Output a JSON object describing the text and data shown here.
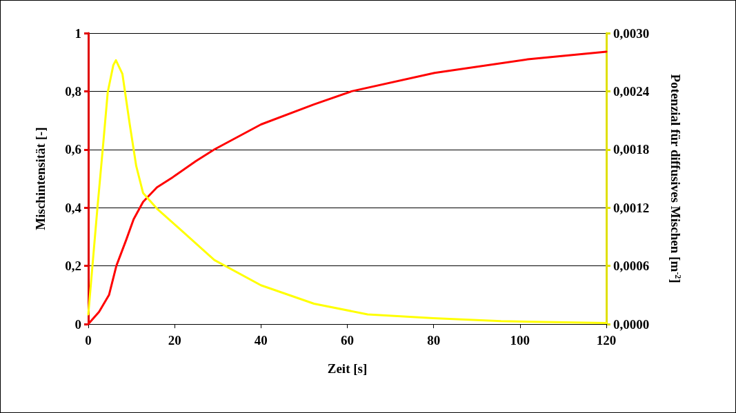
{
  "chart_data": {
    "type": "line",
    "xlabel": "Zeit [s]",
    "ylabel": "Mischintensität [-]",
    "y2label": "Potenzial für diffusives Mischen [m$^{-2}$]",
    "xlim": [
      0,
      120
    ],
    "xticks": [
      0,
      20,
      40,
      60,
      80,
      100,
      120
    ],
    "ylim": [
      0,
      1
    ],
    "yticks": [
      0,
      {
        "value": 0.2,
        "label": "0,2"
      },
      {
        "value": 0.4,
        "label": "0,4"
      },
      {
        "value": 0.6,
        "label": "0,6"
      },
      {
        "value": 0.8,
        "label": "0,8"
      },
      1
    ],
    "y2lim": [
      0,
      0.003
    ],
    "y2ticks": [
      {
        "value": 0,
        "label": "0,0000"
      },
      {
        "value": 0.0006,
        "label": "0,0006"
      },
      {
        "value": 0.0012,
        "label": "0,0012"
      },
      {
        "value": 0.0018,
        "label": "0,0018"
      },
      {
        "value": 0.0024,
        "label": "0,0024"
      },
      {
        "value": 0.003,
        "label": "0,0030"
      }
    ],
    "grid": "y",
    "marker": "none",
    "line_style": "solid",
    "series": [
      {
        "color": "#ff0000",
        "x": [
          0,
          2.5,
          4.8,
          6.5,
          8.8,
          10.5,
          12.7,
          15.9,
          19.6,
          24.9,
          29.2,
          40,
          52.3,
          61,
          80.2,
          101.8,
          120
        ],
        "values": [
          0,
          0.042,
          0.1,
          0.2,
          0.29,
          0.36,
          0.42,
          0.47,
          0.505,
          0.56,
          0.6,
          0.686,
          0.755,
          0.8,
          0.863,
          0.91,
          0.936
        ]
      },
      {
        "color": "#ffff00",
        "axis": "y2",
        "x": [
          0,
          2.1,
          3.4,
          4.5,
          5.8,
          6.4,
          7.9,
          9.6,
          11.1,
          12.7,
          15.9,
          21.2,
          29.2,
          40,
          52.3,
          64.7,
          80,
          95.6,
          120
        ],
        "values": [
          0.0001,
          0.00119,
          0.00183,
          0.00239,
          0.00267,
          0.00272,
          0.00258,
          0.00206,
          0.00163,
          0.00135,
          0.00119,
          0.00098,
          0.00066,
          0.0004,
          0.00021,
          0.0001,
          6e-05,
          3e-05,
          1e-05
        ]
      }
    ]
  }
}
